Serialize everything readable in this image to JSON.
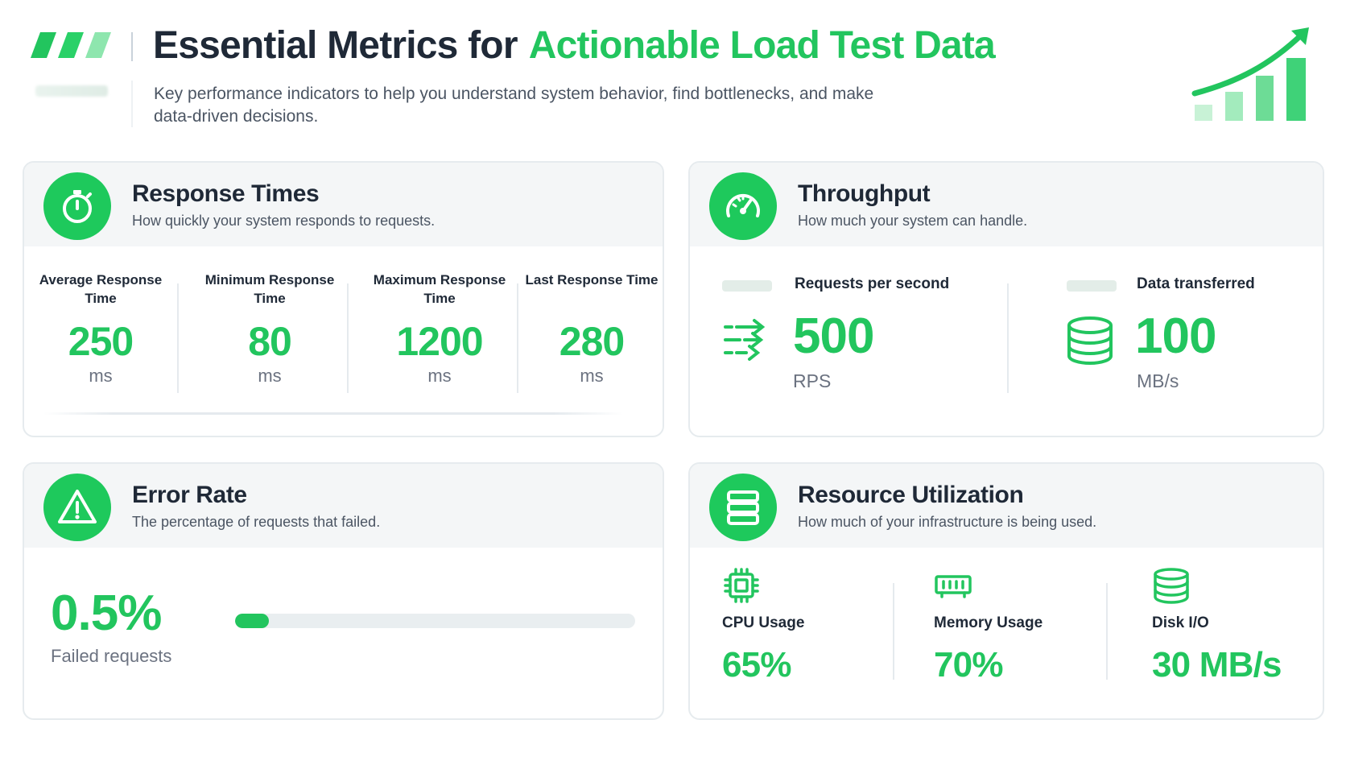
{
  "header": {
    "title_part1": "Essential Metrics for",
    "title_part2": "Actionable Load Test Data",
    "subtitle": "Key performance indicators to help you understand system behavior, find bottlenecks, and make data-driven decisions.",
    "icons": [
      "logo-stripes-icon",
      "growth-chart-icon"
    ]
  },
  "colors": {
    "accent": "#22c55e",
    "icon_bg": "#1ec95c",
    "title": "#1f2937",
    "muted": "#6b7280",
    "card_header_bg": "#f4f6f7"
  },
  "response_times": {
    "title": "Response Times",
    "description": "How quickly your system responds to requests.",
    "icon": "stopwatch-icon",
    "metrics": [
      {
        "label": "Average Response Time",
        "value": "250",
        "unit": "ms"
      },
      {
        "label": "Minimum Response Time",
        "value": "80",
        "unit": "ms"
      },
      {
        "label": "Maximum Response Time",
        "value": "1200",
        "unit": "ms"
      },
      {
        "label": "Last Response Time",
        "value": "280",
        "unit": "ms"
      }
    ]
  },
  "throughput": {
    "title": "Throughput",
    "description": "How much your system can handle.",
    "icon": "speedometer-icon",
    "metrics": [
      {
        "label": "Requests per second",
        "value": "500",
        "unit": "RPS",
        "icon": "transfer-arrows-icon"
      },
      {
        "label": "Data transferred",
        "value": "100",
        "unit": "MB/s",
        "icon": "database-icon"
      }
    ]
  },
  "error_rate": {
    "title": "Error Rate",
    "description": "The percentage of requests that failed.",
    "icon": "warning-triangle-icon",
    "value": "0.5%",
    "label": "Failed requests",
    "bar_fraction": 0.005
  },
  "resource_utilization": {
    "title": "Resource Utilization",
    "description": "How much of your infrastructure is being used.",
    "icon": "server-icon",
    "metrics": [
      {
        "label": "CPU Usage",
        "value": "65%",
        "icon": "cpu-icon"
      },
      {
        "label": "Memory Usage",
        "value": "70%",
        "icon": "memory-icon"
      },
      {
        "label": "Disk I/O",
        "value": "30 MB/s",
        "icon": "disk-icon"
      }
    ]
  }
}
